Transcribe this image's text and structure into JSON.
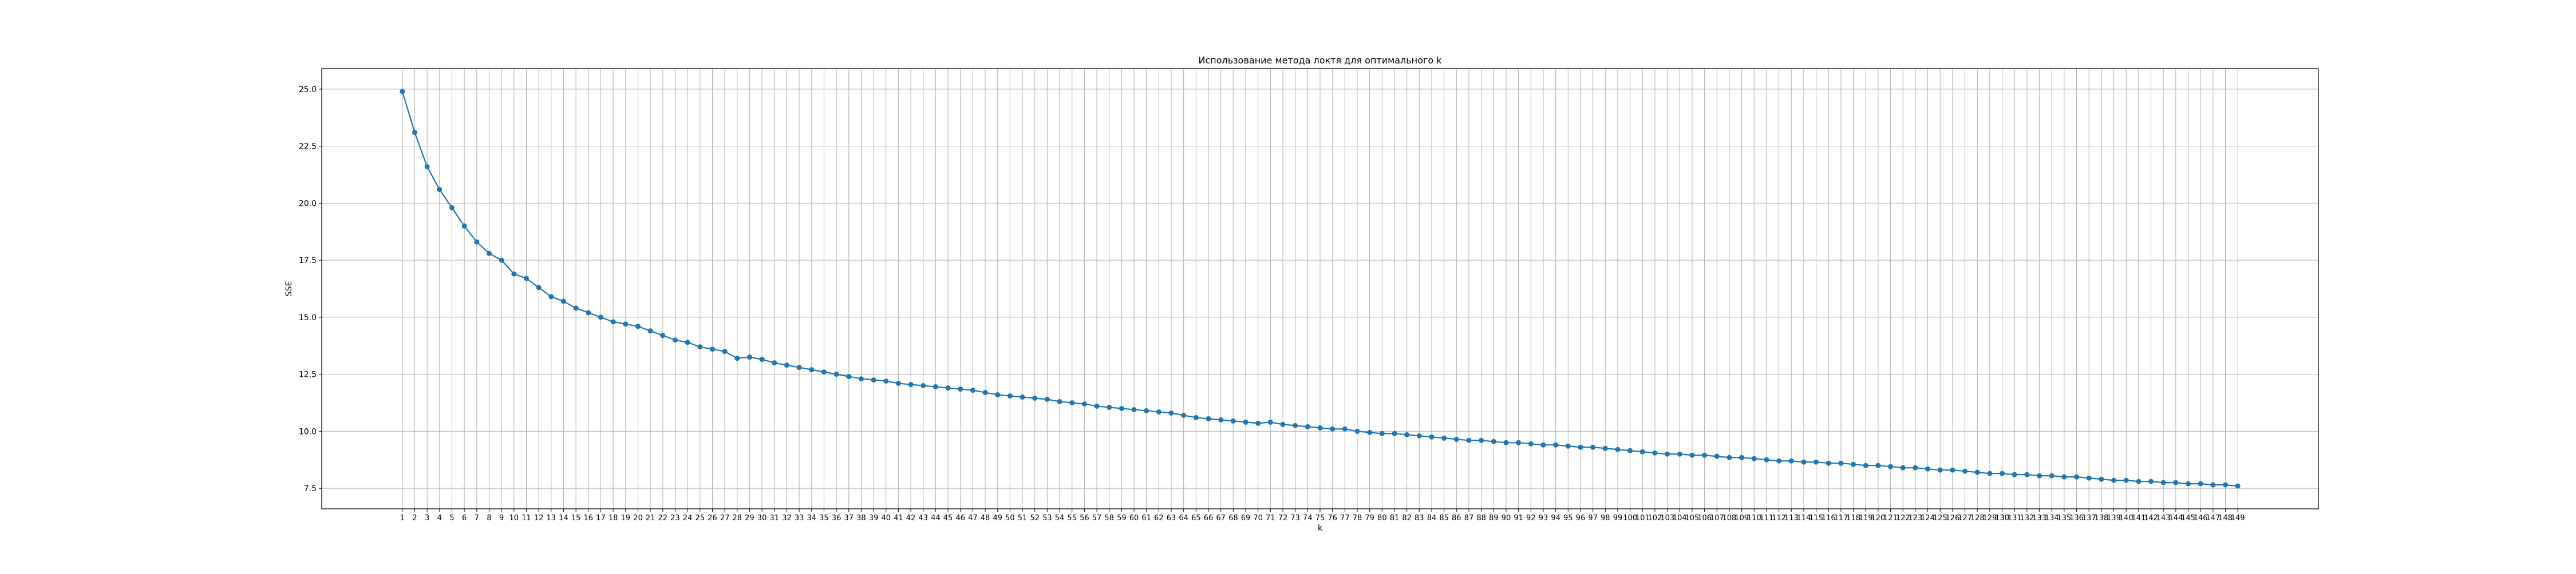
{
  "chart_data": {
    "type": "line",
    "title": "Использование метода локтя для оптимального k",
    "xlabel": "k",
    "ylabel": "SSE",
    "x_start": 1,
    "x_end": 149,
    "xlim": [
      -5.5,
      155.5
    ],
    "ylim": [
      6.6,
      25.9
    ],
    "yticks": [
      7.5,
      10.0,
      12.5,
      15.0,
      17.5,
      20.0,
      22.5,
      25.0
    ],
    "ytick_labels": [
      "7.5",
      "10.0",
      "12.5",
      "15.0",
      "17.5",
      "20.0",
      "22.5",
      "25.0"
    ],
    "grid": true,
    "marker": "circle",
    "color": "#1f77b4",
    "series": [
      {
        "values": [
          24.9,
          23.1,
          21.6,
          20.6,
          19.8,
          19.0,
          18.3,
          17.8,
          17.5,
          16.9,
          16.7,
          16.3,
          15.9,
          15.7,
          15.4,
          15.2,
          15.0,
          14.8,
          14.7,
          14.6,
          14.4,
          14.2,
          14.0,
          13.9,
          13.7,
          13.6,
          13.5,
          13.2,
          13.25,
          13.15,
          13.0,
          12.9,
          12.8,
          12.7,
          12.6,
          12.5,
          12.4,
          12.3,
          12.25,
          12.2,
          12.1,
          12.05,
          12.0,
          11.95,
          11.9,
          11.85,
          11.8,
          11.7,
          11.6,
          11.55,
          11.5,
          11.45,
          11.4,
          11.3,
          11.25,
          11.2,
          11.1,
          11.05,
          11.0,
          10.95,
          10.9,
          10.85,
          10.8,
          10.7,
          10.6,
          10.55,
          10.5,
          10.45,
          10.4,
          10.35,
          10.4,
          10.3,
          10.25,
          10.2,
          10.15,
          10.1,
          10.1,
          10.0,
          9.95,
          9.9,
          9.9,
          9.85,
          9.8,
          9.75,
          9.7,
          9.65,
          9.6,
          9.6,
          9.55,
          9.5,
          9.5,
          9.45,
          9.4,
          9.4,
          9.35,
          9.3,
          9.3,
          9.25,
          9.2,
          9.15,
          9.1,
          9.05,
          9.0,
          9.0,
          8.95,
          8.95,
          8.9,
          8.85,
          8.85,
          8.8,
          8.75,
          8.7,
          8.7,
          8.65,
          8.65,
          8.6,
          8.6,
          8.55,
          8.5,
          8.5,
          8.45,
          8.4,
          8.4,
          8.35,
          8.3,
          8.3,
          8.25,
          8.2,
          8.15,
          8.15,
          8.1,
          8.1,
          8.05,
          8.05,
          8.0,
          8.0,
          7.95,
          7.9,
          7.85,
          7.85,
          7.8,
          7.8,
          7.75,
          7.75,
          7.7,
          7.7,
          7.65,
          7.65,
          7.6
        ]
      }
    ]
  }
}
